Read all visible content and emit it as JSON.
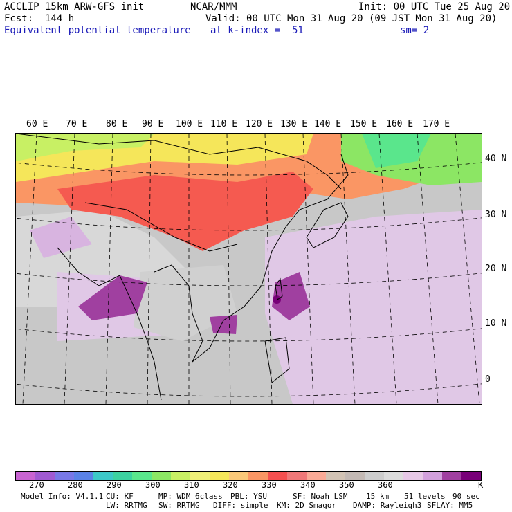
{
  "header": {
    "model": "ACCLIP 15km ARW-GFS init",
    "org": "NCAR/MMM",
    "init": "Init: 00 UTC Tue 25 Aug 20",
    "fcst": "Fcst:  144 h",
    "valid": "Valid: 00 UTC Mon 31 Aug 20 (09 JST Mon 31 Aug 20)",
    "field": "Equivalent potential temperature",
    "level": "at k-index =  51",
    "smooth": "sm= 2"
  },
  "map": {
    "lon_labels": [
      "60 E",
      "70 E",
      "80 E",
      "90 E",
      "100 E",
      "110 E",
      "120 E",
      "130 E",
      "140 E",
      "150 E",
      "160 E",
      "170 E"
    ],
    "lat_labels": [
      "40 N",
      "30 N",
      "20 N",
      "10 N",
      "0"
    ]
  },
  "colorbar": {
    "colors": [
      "#c864d2",
      "#a05ad2",
      "#7878e6",
      "#5a82e6",
      "#3cc8c8",
      "#3cd2a0",
      "#5ae68c",
      "#8ce664",
      "#c8f064",
      "#f0f078",
      "#f5e65a",
      "#fac878",
      "#fa9664",
      "#f55050",
      "#f07878",
      "#faaa96",
      "#d2c3b4",
      "#c3b9b4",
      "#cdcdcd",
      "#dcdcdc",
      "#e6c8e6",
      "#d2a0dc",
      "#a040a0",
      "#780078"
    ],
    "labels": [
      "270",
      "280",
      "290",
      "300",
      "310",
      "320",
      "330",
      "340",
      "350",
      "360"
    ],
    "unit": "K"
  },
  "footer": {
    "line1": [
      "Model Info: V4.1.1",
      "CU: KF",
      "MP: WDM 6class",
      "PBL: YSU",
      "SF: Noah LSM",
      "15 km",
      "51 levels",
      "90 sec"
    ],
    "line2": [
      "LW: RRTMG",
      "SW: RRTMG",
      "DIFF: simple",
      "KM: 2D Smagor",
      "DAMP: Rayleigh3",
      "SFLAY: MM5"
    ]
  }
}
